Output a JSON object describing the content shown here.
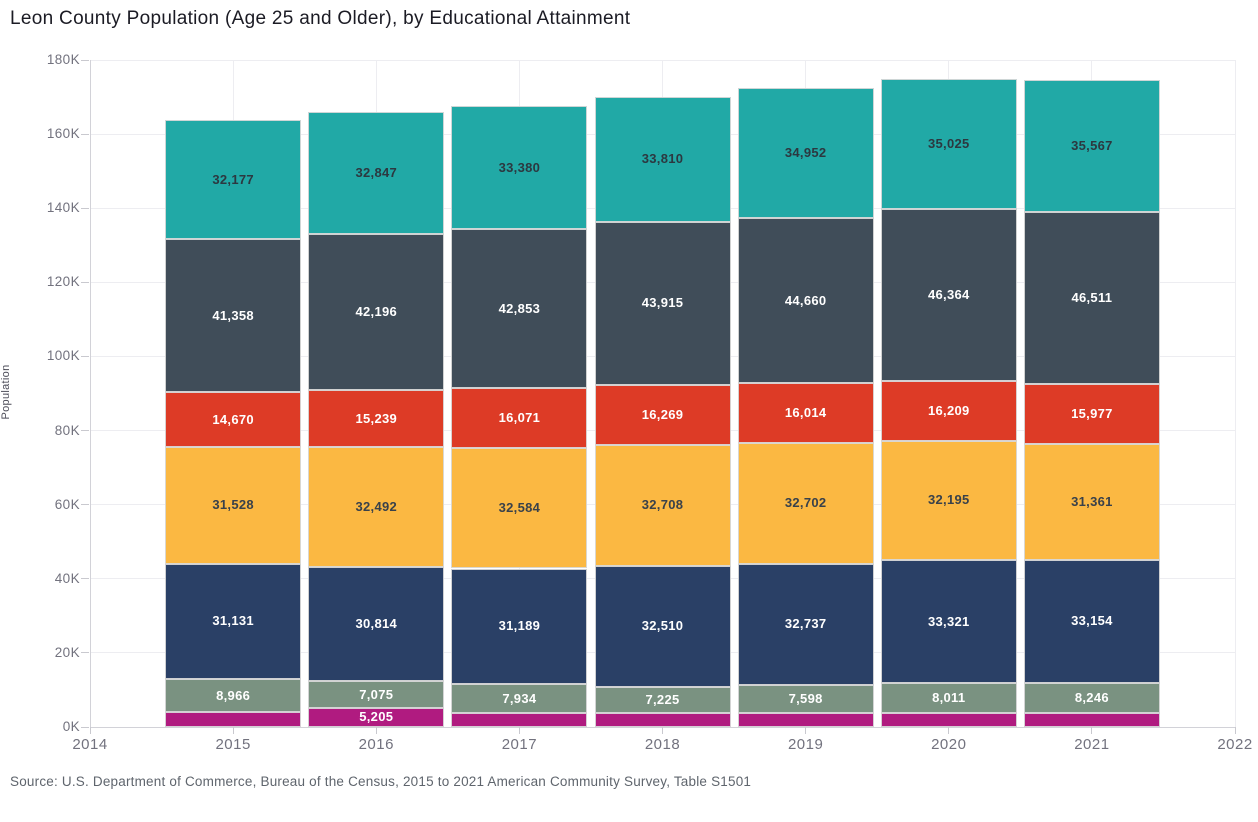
{
  "page": {
    "title": "Leon County Population (Age 25 and Older), by Educational Attainment",
    "source": "Source: U.S. Department of Commerce, Bureau of the Census, 2015 to 2021 American Community Survey, Table S1501"
  },
  "chart_data": {
    "type": "bar",
    "stacked": true,
    "title": "Leon County Population (Age 25 and Older), by Educational Attainment",
    "xlabel": "",
    "ylabel": "Population",
    "ylim": [
      0,
      180000
    ],
    "ytick_interval": 20000,
    "ytick_labels": [
      "0K",
      "20K",
      "40K",
      "60K",
      "80K",
      "100K",
      "120K",
      "140K",
      "160K",
      "180K"
    ],
    "xtick_labels": [
      "2014",
      "2015",
      "2016",
      "2017",
      "2018",
      "2019",
      "2020",
      "2021",
      "2022"
    ],
    "categories": [
      "2015",
      "2016",
      "2017",
      "2018",
      "2019",
      "2020",
      "2021"
    ],
    "grid": true,
    "legend": "none",
    "note": "Series are unnamed in the image (no legend); identified by color, listed bottom-to-top. Magenta values are unlabeled except 2016 and are estimated from bar heights.",
    "series": [
      {
        "id": "magenta-segment",
        "color": "#b01b80",
        "label_color": "#ffffff",
        "values": [
          4000,
          5205,
          3650,
          3700,
          3700,
          3750,
          3700
        ],
        "labels": [
          "",
          "5,205",
          "",
          "",
          "",
          "",
          ""
        ]
      },
      {
        "id": "sage-green-segment",
        "color": "#7a9281",
        "label_color": "#ffffff",
        "values": [
          8966,
          7075,
          7934,
          7225,
          7598,
          8011,
          8246
        ],
        "labels": [
          "8,966",
          "7,075",
          "7,934",
          "7,225",
          "7,598",
          "8,011",
          "8,246"
        ]
      },
      {
        "id": "navy-segment",
        "color": "#2a4066",
        "label_color": "#ffffff",
        "values": [
          31131,
          30814,
          31189,
          32510,
          32737,
          33321,
          33154
        ],
        "labels": [
          "31,131",
          "30,814",
          "31,189",
          "32,510",
          "32,737",
          "33,321",
          "33,154"
        ]
      },
      {
        "id": "amber-segment",
        "color": "#fbb842",
        "label_color": "#39414a",
        "values": [
          31528,
          32492,
          32584,
          32708,
          32702,
          32195,
          31361
        ],
        "labels": [
          "31,528",
          "32,492",
          "32,584",
          "32,708",
          "32,702",
          "32,195",
          "31,361"
        ]
      },
      {
        "id": "red-segment",
        "color": "#dd3b26",
        "label_color": "#ffffff",
        "values": [
          14670,
          15239,
          16071,
          16269,
          16014,
          16209,
          15977
        ],
        "labels": [
          "14,670",
          "15,239",
          "16,071",
          "16,269",
          "16,014",
          "16,209",
          "15,977"
        ]
      },
      {
        "id": "slate-segment",
        "color": "#404d59",
        "label_color": "#ffffff",
        "values": [
          41358,
          42196,
          42853,
          43915,
          44660,
          46364,
          46511
        ],
        "labels": [
          "41,358",
          "42,196",
          "42,853",
          "43,915",
          "44,660",
          "46,364",
          "46,511"
        ]
      },
      {
        "id": "teal-segment",
        "color": "#21a9a6",
        "label_color": "#2c3840",
        "values": [
          32177,
          32847,
          33380,
          33810,
          34952,
          35025,
          35567
        ],
        "labels": [
          "32,177",
          "32,847",
          "33,380",
          "33,810",
          "34,952",
          "35,025",
          "35,567"
        ]
      }
    ]
  }
}
